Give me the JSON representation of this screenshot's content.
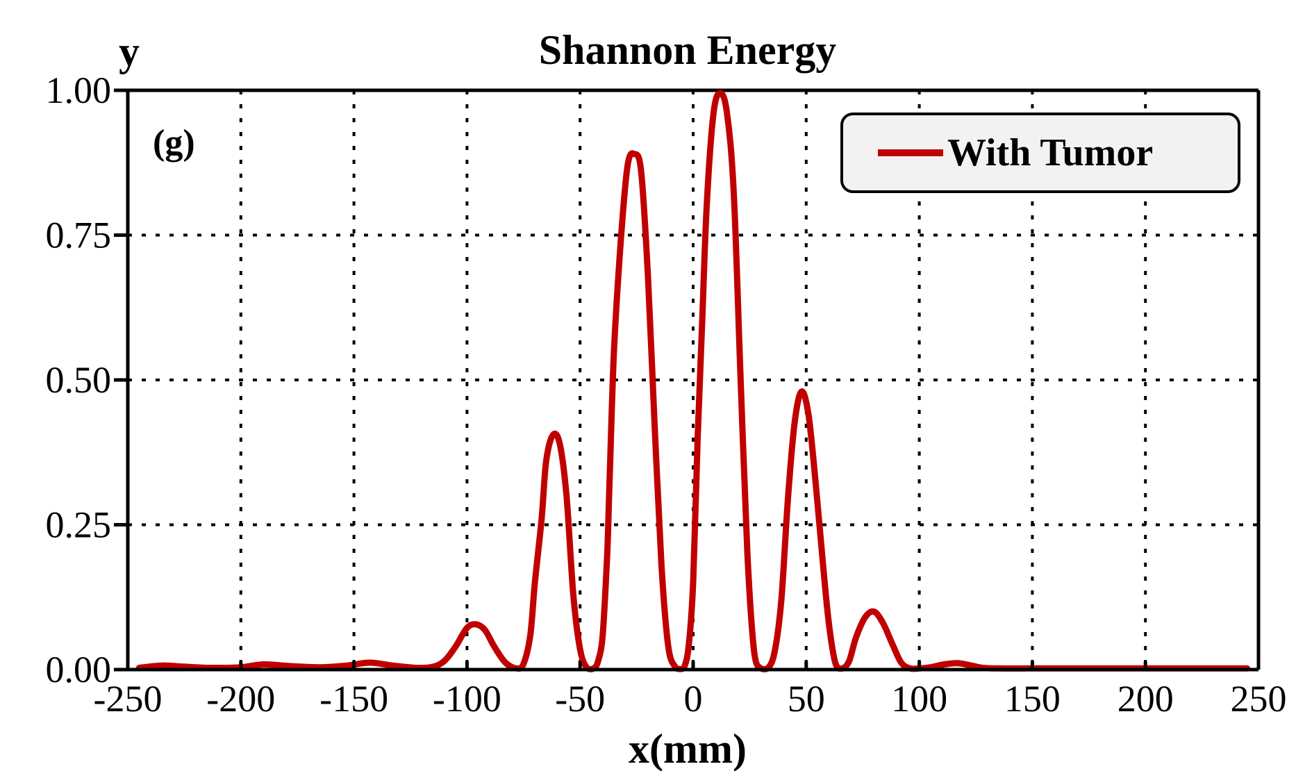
{
  "chart_data": {
    "type": "line",
    "title": "Shannon Energy",
    "panel_label": "(g)",
    "xlabel": "x(mm)",
    "ylabel": "y",
    "xlim": [
      -250,
      250
    ],
    "ylim": [
      0,
      1
    ],
    "x_ticks": [
      "-250",
      "-200",
      "-150",
      "-100",
      "-50",
      "0",
      "50",
      "100",
      "150",
      "200",
      "250"
    ],
    "y_ticks": [
      "0.00",
      "0.25",
      "0.50",
      "0.75",
      "1.00"
    ],
    "grid": true,
    "legend_position": "top-right",
    "series": [
      {
        "name": "With Tumor",
        "color": "#c00000",
        "x": [
          -245,
          -235,
          -225,
          -213,
          -200,
          -190,
          -178,
          -165,
          -153,
          -143,
          -133,
          -122,
          -115,
          -110,
          -105,
          -100,
          -96,
          -92,
          -88,
          -83,
          -78,
          -75,
          -72,
          -70,
          -67,
          -65,
          -62,
          -59,
          -56,
          -53,
          -50,
          -47,
          -44,
          -42,
          -40,
          -38,
          -37,
          -35,
          -32,
          -29,
          -26,
          -23,
          -20,
          -17,
          -14,
          -11,
          -8,
          -6,
          -4,
          -2,
          0,
          2,
          4,
          6,
          9,
          12,
          15,
          18,
          21,
          24,
          27,
          30,
          33,
          36,
          39,
          42,
          45,
          48,
          51,
          54,
          57,
          60,
          63,
          66,
          69,
          72,
          76,
          80,
          84,
          88,
          92,
          96,
          100,
          105,
          111,
          117,
          123,
          128,
          135,
          150,
          175,
          200,
          225,
          245
        ],
        "values": [
          0.003,
          0.007,
          0.005,
          0.003,
          0.004,
          0.009,
          0.006,
          0.004,
          0.007,
          0.012,
          0.007,
          0.003,
          0.005,
          0.015,
          0.04,
          0.072,
          0.078,
          0.068,
          0.04,
          0.012,
          0.002,
          0.01,
          0.06,
          0.15,
          0.26,
          0.36,
          0.405,
          0.39,
          0.3,
          0.13,
          0.035,
          0.003,
          0.002,
          0.015,
          0.06,
          0.2,
          0.32,
          0.55,
          0.74,
          0.87,
          0.89,
          0.86,
          0.68,
          0.42,
          0.18,
          0.04,
          0.005,
          0.001,
          0.004,
          0.04,
          0.15,
          0.4,
          0.6,
          0.8,
          0.96,
          0.995,
          0.96,
          0.82,
          0.5,
          0.2,
          0.03,
          0.002,
          0.002,
          0.03,
          0.12,
          0.3,
          0.43,
          0.48,
          0.44,
          0.33,
          0.2,
          0.08,
          0.01,
          0.002,
          0.015,
          0.055,
          0.09,
          0.1,
          0.08,
          0.045,
          0.012,
          0.002,
          0.002,
          0.004,
          0.009,
          0.011,
          0.007,
          0.003,
          0.002,
          0.002,
          0.002,
          0.002,
          0.002,
          0.002
        ]
      }
    ]
  }
}
